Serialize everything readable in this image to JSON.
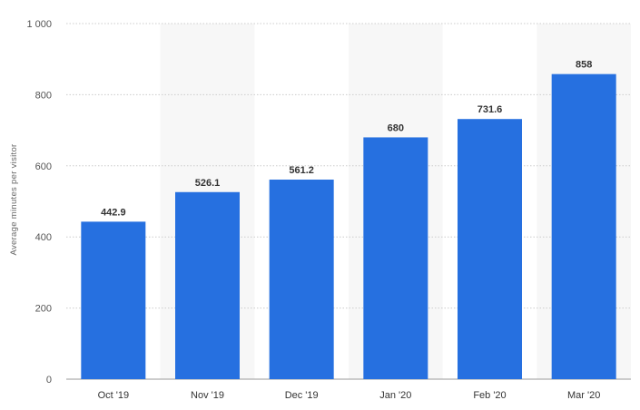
{
  "chart_data": {
    "type": "bar",
    "title": "",
    "xlabel": "",
    "ylabel": "Average minutes per visitor",
    "categories": [
      "Oct '19",
      "Nov '19",
      "Dec '19",
      "Jan '20",
      "Feb '20",
      "Mar '20"
    ],
    "values": [
      442.9,
      526.1,
      561.2,
      680,
      731.6,
      858
    ],
    "value_labels": [
      "442.9",
      "526.1",
      "561.2",
      "680",
      "731.6",
      "858"
    ],
    "ylim": [
      0,
      1000
    ],
    "yticks": [
      0,
      200,
      400,
      600,
      800,
      1000
    ],
    "ytick_labels": [
      "0",
      "200",
      "400",
      "600",
      "800",
      "1 000"
    ],
    "grid": true,
    "alternate_column_shading": true,
    "bar_color": "#2670e0",
    "shade_color": "#f7f7f7",
    "grid_color": "#cccccc"
  }
}
